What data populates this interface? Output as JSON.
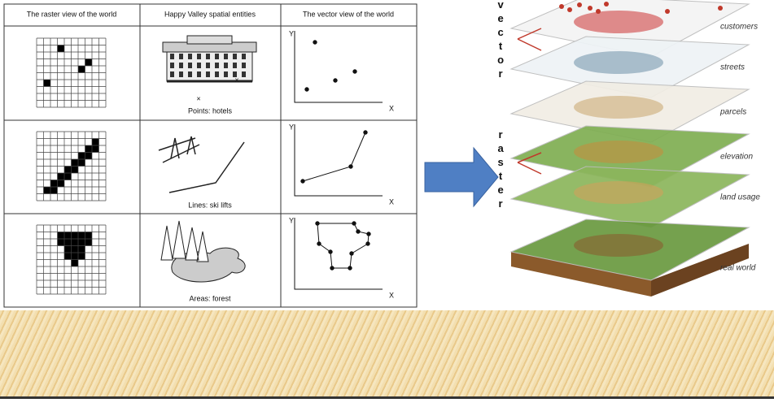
{
  "table": {
    "headers": [
      "The raster view of the world",
      "Happy Valley spatial entities",
      "The vector view of the world"
    ],
    "captions": [
      "Points: hotels",
      "Lines: ski lifts",
      "Areas: forest"
    ],
    "axis_y": "Y",
    "axis_x": "X"
  },
  "stack": {
    "vector_word": "vector",
    "raster_word": "raster",
    "layers": [
      "customers",
      "streets",
      "parcels",
      "elevation",
      "land usage",
      "real world"
    ]
  }
}
